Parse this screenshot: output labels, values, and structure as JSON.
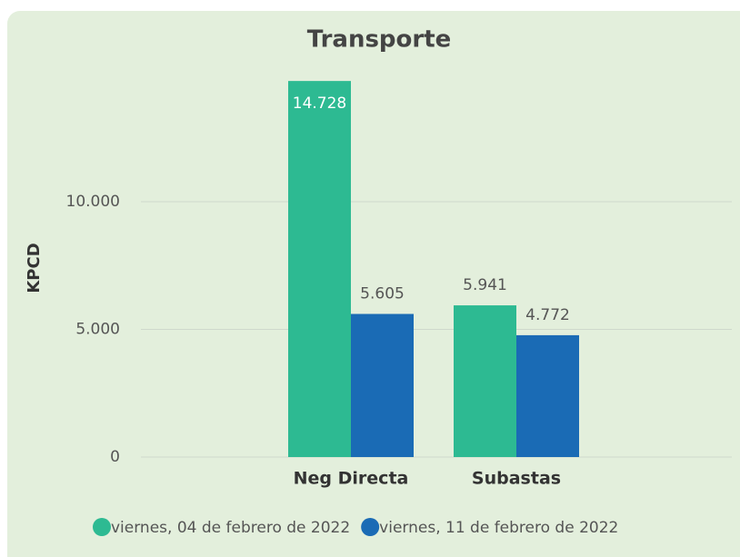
{
  "chart_data": {
    "type": "bar",
    "title": "Transporte",
    "y_label": "KPCD",
    "categories": [
      "Neg Directa",
      "Subastas"
    ],
    "series": [
      {
        "name": "viernes, 04 de febrero de 2022",
        "color": "#2dba92",
        "values": [
          14728,
          5941
        ],
        "value_labels": [
          "14.728",
          "5.941"
        ]
      },
      {
        "name": "viernes, 11 de febrero de 2022",
        "color": "#1a6bb5",
        "values": [
          5605,
          4772
        ],
        "value_labels": [
          "5.605",
          "4.772"
        ]
      }
    ],
    "ylim": [
      0,
      15000
    ],
    "yticks": [
      0,
      {
        "value": 5000,
        "label": "5.000"
      },
      {
        "value": 10000,
        "label": "10.000"
      }
    ],
    "grid": true
  }
}
